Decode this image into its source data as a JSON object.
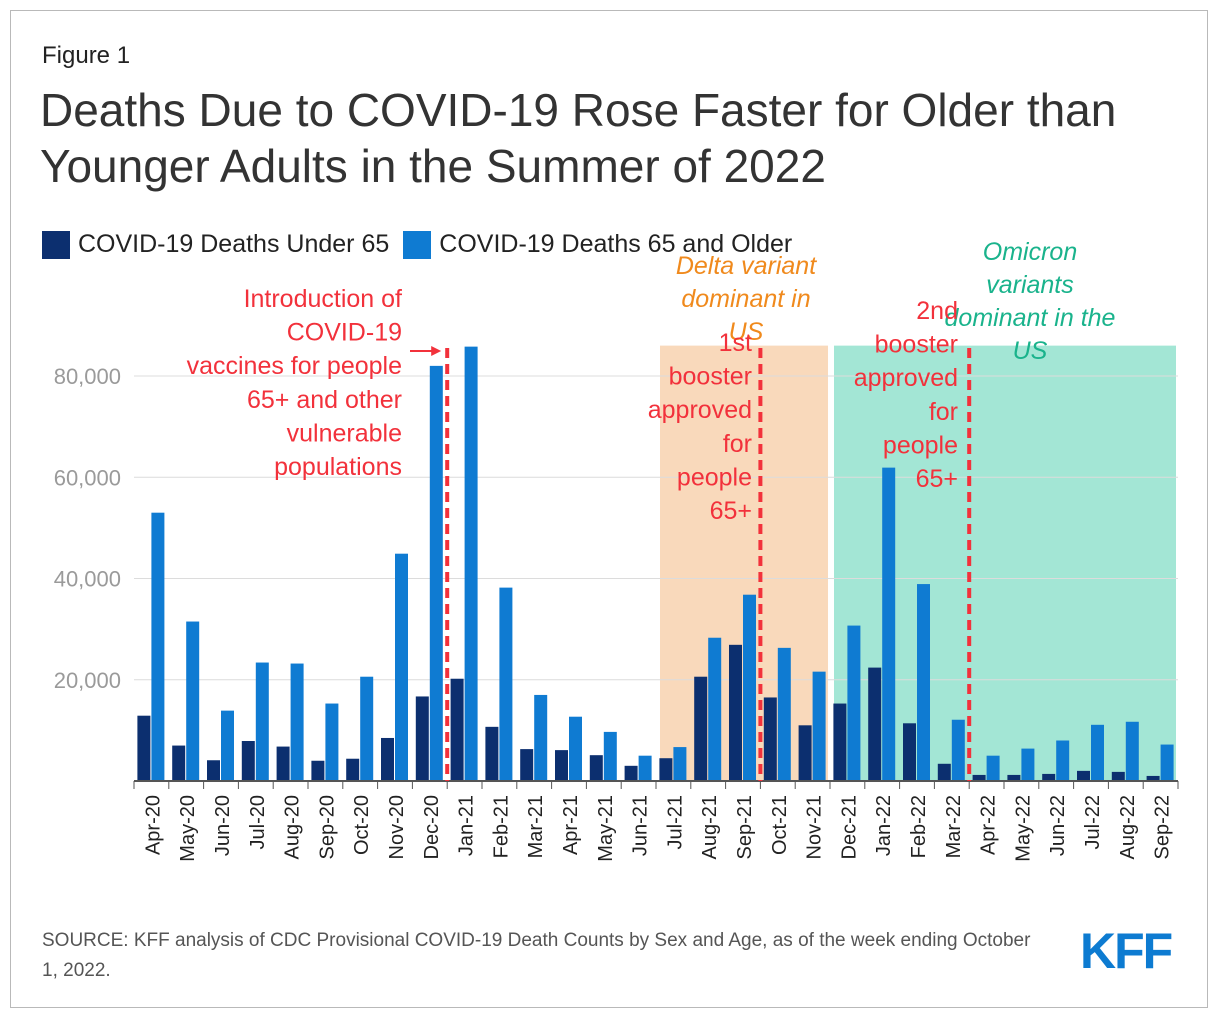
{
  "figure_label": "Figure 1",
  "title": "Deaths Due to COVID-19 Rose Faster for Older than Younger Adults in the Summer of 2022",
  "source": "SOURCE: KFF analysis of CDC Provisional COVID-19 Death Counts by Sex and Age, as of the week ending October 1, 2022.",
  "logo": "KFF",
  "chart_data": {
    "type": "bar",
    "categories": [
      "Apr-20",
      "May-20",
      "Jun-20",
      "Jul-20",
      "Aug-20",
      "Sep-20",
      "Oct-20",
      "Nov-20",
      "Dec-20",
      "Jan-21",
      "Feb-21",
      "Mar-21",
      "Apr-21",
      "May-21",
      "Jun-21",
      "Jul-21",
      "Aug-21",
      "Sep-21",
      "Oct-21",
      "Nov-21",
      "Dec-21",
      "Jan-22",
      "Feb-22",
      "Mar-22",
      "Apr-22",
      "May-22",
      "Jun-22",
      "Jul-22",
      "Aug-22",
      "Sep-22"
    ],
    "series": [
      {
        "name": "COVID-19 Deaths Under 65",
        "color": "#0c2f6f",
        "values": [
          12900,
          7000,
          4100,
          7900,
          6800,
          4000,
          4400,
          8500,
          16700,
          20200,
          10700,
          6300,
          6100,
          5100,
          3000,
          4500,
          20600,
          26900,
          16500,
          11000,
          15300,
          22400,
          11400,
          3400,
          1200,
          1200,
          1400,
          2000,
          1800,
          1000
        ]
      },
      {
        "name": "COVID-19 Deaths 65 and Older",
        "color": "#0f7bd2",
        "values": [
          53000,
          31500,
          13900,
          23400,
          23200,
          15300,
          20600,
          44900,
          82000,
          85800,
          38200,
          17000,
          12700,
          9700,
          5000,
          6700,
          28300,
          36800,
          26300,
          21600,
          30700,
          61900,
          38900,
          12100,
          5000,
          6400,
          8000,
          11100,
          11700,
          7200
        ]
      }
    ],
    "ylim": [
      0,
      86000
    ],
    "yticks": [
      "20,000",
      "40,000",
      "60,000",
      "80,000"
    ],
    "ytick_values": [
      20000,
      40000,
      60000,
      80000
    ],
    "grid": true,
    "shaded_regions": [
      {
        "start": "Jul-21",
        "end": "Nov-21",
        "color": "#f9d9bb",
        "label": [
          "Delta variant",
          "dominant in",
          "US"
        ],
        "label_color": "#f08a1d"
      },
      {
        "start": "Dec-21",
        "end": "Sep-22",
        "color": "#a3e6d5",
        "label": [
          "Omicron",
          "variants",
          "dominant in the",
          "US"
        ],
        "label_color": "#1ab38c"
      }
    ],
    "annotations": [
      {
        "between": [
          "Dec-20",
          "Jan-21"
        ],
        "color": "#f2313b",
        "lines": [
          "Introduction of",
          "COVID-19",
          "vaccines for people",
          "65+ and other",
          "vulnerable",
          "populations"
        ]
      },
      {
        "between": [
          "Sep-21",
          "Oct-21"
        ],
        "color": "#f2313b",
        "lines": [
          "1st",
          "booster",
          "approved",
          "for",
          "people",
          "65+"
        ]
      },
      {
        "between": [
          "Mar-22",
          "Apr-22"
        ],
        "color": "#f2313b",
        "lines": [
          "2nd",
          "booster",
          "approved",
          "for",
          "people",
          "65+"
        ]
      }
    ]
  }
}
